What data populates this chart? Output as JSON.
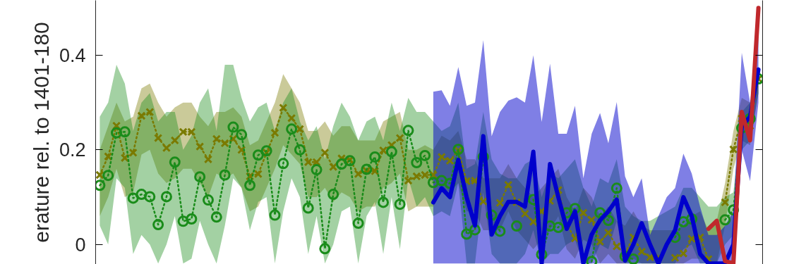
{
  "chart_data": {
    "type": "line",
    "ylabel": "erature rel. to 1401-180",
    "categories": [
      null,
      null,
      null,
      null,
      null,
      null,
      null,
      null,
      null,
      null,
      null,
      null,
      null,
      null,
      null,
      null,
      null,
      null,
      null,
      null,
      null,
      null,
      null,
      null,
      null,
      null,
      null,
      null,
      null,
      null,
      null,
      null,
      null,
      null,
      null,
      null,
      null,
      null,
      null,
      null,
      null,
      null,
      null,
      null,
      null,
      null,
      null,
      null,
      null,
      null,
      null,
      null,
      null,
      null,
      null,
      null,
      null,
      null,
      null,
      null,
      null,
      null,
      null,
      null,
      null,
      null,
      null,
      null,
      null,
      null,
      null,
      null,
      null,
      null,
      null,
      null,
      null,
      null,
      null,
      null
    ],
    "ylim": [
      -0.042,
      0.516
    ],
    "yticks": [
      0,
      0.2,
      0.4
    ],
    "tick_labels": "y",
    "grid": false,
    "series": [
      {
        "color": "#7a7a00",
        "marker": "cross",
        "line_style": "dotted",
        "values": [
          0.147,
          0.186,
          0.251,
          0.183,
          0.194,
          0.272,
          0.28,
          0.225,
          0.204,
          0.22,
          0.238,
          0.238,
          0.207,
          0.18,
          0.223,
          0.214,
          0.223,
          0.2,
          0.144,
          0.149,
          0.194,
          0.236,
          0.289,
          0.267,
          0.244,
          0.174,
          0.174,
          0.194,
          0.164,
          0.182,
          0.179,
          0.149,
          0.156,
          0.155,
          0.199,
          0.21,
          0.225,
          0.135,
          0.144,
          0.147,
          0.147,
          0.185,
          0.177,
          0.199,
          0.134,
          0.135,
          0.091,
          null,
          0.088,
          0.126,
          0.089,
          0.065,
          0.048,
          0.07,
          0.092,
          0.115,
          0.042,
          0.013,
          0.067,
          0.052,
          0.006,
          0.025,
          -0.004,
          -0.019,
          0.015,
          -0.015,
          -0.027,
          -0.027,
          null,
          -0.028,
          -0.019,
          0.012,
          0.015,
          -0.031,
          null,
          0.089,
          0.201,
          0.266,
          0.251,
          0.35
        ],
        "upper": [
          0.2,
          0.25,
          0.3,
          0.26,
          0.27,
          0.33,
          0.34,
          0.3,
          0.27,
          0.29,
          0.3,
          0.3,
          0.27,
          0.25,
          0.28,
          0.28,
          0.29,
          0.27,
          0.21,
          0.22,
          0.26,
          0.3,
          0.36,
          0.33,
          0.3,
          0.24,
          0.24,
          0.26,
          0.23,
          0.25,
          0.25,
          0.22,
          0.22,
          0.22,
          0.26,
          0.27,
          0.28,
          0.2,
          0.2,
          0.21,
          0.2,
          0.23,
          0.22,
          0.24,
          0.18,
          0.18,
          0.14,
          0.14,
          0.14,
          0.17,
          0.14,
          0.12,
          0.1,
          0.12,
          0.14,
          0.16,
          0.1,
          0.07,
          0.12,
          0.1,
          0.06,
          0.08,
          0.05,
          0.04,
          0.07,
          0.04,
          0.03,
          0.03,
          0.03,
          0.03,
          0.04,
          0.06,
          0.07,
          0.03,
          0.05,
          0.13,
          0.24,
          0.31,
          0.3,
          0.37
        ],
        "lower": [
          0.06,
          0.1,
          0.16,
          0.1,
          0.11,
          0.19,
          0.2,
          0.15,
          0.13,
          0.14,
          0.16,
          0.16,
          0.13,
          0.1,
          0.15,
          0.14,
          0.15,
          0.12,
          0.07,
          0.08,
          0.12,
          0.16,
          0.21,
          0.19,
          0.17,
          0.1,
          0.1,
          0.12,
          0.09,
          0.11,
          0.1,
          0.07,
          0.08,
          0.08,
          0.12,
          0.13,
          0.15,
          0.07,
          0.08,
          0.08,
          0.08,
          0.12,
          0.11,
          0.13,
          0.07,
          0.07,
          0.03,
          0.03,
          0.03,
          0.07,
          0.03,
          0.01,
          -0.01,
          0.01,
          0.03,
          0.06,
          -0.01,
          -0.03,
          0.01,
          0.0,
          -0.04,
          -0.02,
          -0.04,
          -0.04,
          -0.03,
          -0.04,
          -0.04,
          -0.04,
          -0.04,
          -0.04,
          -0.04,
          -0.03,
          -0.03,
          -0.04,
          -0.04,
          0.04,
          0.16,
          0.22,
          0.21,
          0.32
        ]
      },
      {
        "color": "#1a8c1a",
        "marker": "circle",
        "line_style": "dotted",
        "values": [
          0.125,
          0.146,
          0.236,
          0.238,
          0.098,
          0.106,
          0.101,
          0.042,
          0.101,
          0.174,
          0.049,
          0.054,
          0.143,
          0.094,
          0.058,
          0.147,
          0.248,
          0.232,
          0.125,
          0.189,
          0.198,
          0.062,
          0.171,
          0.244,
          0.2,
          0.077,
          0.158,
          -0.009,
          0.106,
          0.17,
          0.177,
          0.045,
          0.159,
          0.185,
          0.089,
          0.196,
          0.085,
          0.241,
          0.173,
          0.188,
          0.131,
          0.135,
          0.129,
          0.201,
          0.022,
          0.031,
          0.185,
          0.062,
          0.028,
          null,
          0.039,
          null,
          0.095,
          -0.021,
          0.039,
          0.036,
          0.067,
          0.076,
          null,
          -0.036,
          0.067,
          0.051,
          0.119,
          -0.025,
          -0.031,
          null,
          null,
          null,
          null,
          0.015,
          0.048,
          0.054,
          null,
          null,
          null,
          0.052,
          0.073,
          0.246,
          0.266,
          0.35
        ],
        "upper": [
          0.27,
          0.3,
          0.38,
          0.34,
          0.24,
          0.3,
          0.32,
          0.26,
          0.28,
          0.28,
          0.2,
          0.23,
          0.3,
          0.33,
          0.24,
          0.38,
          0.38,
          0.31,
          0.26,
          0.29,
          0.3,
          0.24,
          0.3,
          0.33,
          0.26,
          0.22,
          0.25,
          0.18,
          0.25,
          0.3,
          0.27,
          0.22,
          0.26,
          0.27,
          0.22,
          0.3,
          0.24,
          0.31,
          0.28,
          0.28,
          0.26,
          0.24,
          0.25,
          0.3,
          0.16,
          0.17,
          0.28,
          0.18,
          0.15,
          0.14,
          0.14,
          0.17,
          0.18,
          0.1,
          0.15,
          0.14,
          0.16,
          0.18,
          0.12,
          0.08,
          0.14,
          0.13,
          0.18,
          0.08,
          0.06,
          0.05,
          0.05,
          0.06,
          0.07,
          0.08,
          0.12,
          0.12,
          0.1,
          0.08,
          0.08,
          0.1,
          0.11,
          0.28,
          0.3,
          0.37
        ],
        "lower": [
          0.04,
          0.0,
          0.14,
          0.12,
          -0.02,
          0.02,
          0.0,
          -0.04,
          0.0,
          0.06,
          -0.04,
          -0.03,
          0.05,
          0.0,
          -0.04,
          0.04,
          0.14,
          0.12,
          0.03,
          0.09,
          0.1,
          -0.04,
          0.07,
          0.14,
          0.1,
          -0.02,
          0.06,
          -0.04,
          0.0,
          0.07,
          0.08,
          -0.04,
          0.06,
          0.09,
          -0.02,
          0.1,
          -0.01,
          0.14,
          0.08,
          0.1,
          0.06,
          0.07,
          0.06,
          0.13,
          -0.04,
          -0.04,
          0.11,
          -0.02,
          -0.04,
          -0.04,
          -0.04,
          -0.02,
          0.03,
          -0.04,
          -0.02,
          -0.02,
          0.0,
          0.01,
          -0.04,
          -0.04,
          0.0,
          -0.01,
          0.05,
          -0.04,
          -0.04,
          -0.04,
          -0.04,
          -0.04,
          -0.04,
          -0.04,
          -0.01,
          0.0,
          -0.04,
          -0.04,
          -0.04,
          0.0,
          0.02,
          0.2,
          0.22,
          0.32
        ]
      },
      {
        "color": "#0000cc",
        "marker": "none",
        "line_style": "solid",
        "values": [
          null,
          null,
          null,
          null,
          null,
          null,
          null,
          null,
          null,
          null,
          null,
          null,
          null,
          null,
          null,
          null,
          null,
          null,
          null,
          null,
          null,
          null,
          null,
          null,
          null,
          null,
          null,
          null,
          null,
          null,
          null,
          null,
          null,
          null,
          null,
          null,
          null,
          null,
          null,
          null,
          0.089,
          0.119,
          0.1,
          0.179,
          0.1,
          0.04,
          0.229,
          0.021,
          0.06,
          0.09,
          0.09,
          0.08,
          0.196,
          -0.04,
          0.17,
          0.1,
          0.033,
          0.07,
          -0.04,
          0.021,
          0.051,
          0.07,
          0.095,
          -0.034,
          0.0,
          0.045,
          0.0,
          -0.04,
          0.0,
          0.03,
          0.1,
          0.06,
          -0.02,
          -0.04,
          -0.04,
          -0.04,
          0.0,
          0.25,
          0.27,
          0.37
        ],
        "upper": [
          null,
          null,
          null,
          null,
          null,
          null,
          null,
          null,
          null,
          null,
          null,
          null,
          null,
          null,
          null,
          null,
          null,
          null,
          null,
          null,
          null,
          null,
          null,
          null,
          null,
          null,
          null,
          null,
          null,
          null,
          null,
          null,
          null,
          null,
          null,
          null,
          null,
          null,
          null,
          null,
          0.323,
          0.326,
          0.293,
          0.375,
          0.293,
          0.3,
          0.432,
          0.229,
          0.28,
          0.304,
          0.311,
          0.3,
          0.4,
          0.259,
          0.382,
          0.234,
          0.234,
          0.293,
          0.14,
          0.234,
          0.278,
          0.214,
          0.301,
          0.144,
          0.1,
          0.14,
          0.02,
          0.06,
          0.1,
          0.119,
          0.192,
          0.15,
          0.08,
          0.02,
          0.02,
          0.04,
          0.07,
          0.405,
          0.3,
          0.45
        ],
        "lower": [
          null,
          null,
          null,
          null,
          null,
          null,
          null,
          null,
          null,
          null,
          null,
          null,
          null,
          null,
          null,
          null,
          null,
          null,
          null,
          null,
          null,
          null,
          null,
          null,
          null,
          null,
          null,
          null,
          null,
          null,
          null,
          null,
          null,
          null,
          null,
          null,
          null,
          null,
          null,
          null,
          -0.04,
          -0.04,
          -0.04,
          -0.04,
          -0.04,
          -0.04,
          -0.04,
          -0.04,
          -0.04,
          -0.04,
          -0.04,
          -0.04,
          -0.04,
          -0.04,
          -0.04,
          -0.04,
          -0.04,
          -0.04,
          -0.04,
          -0.04,
          -0.04,
          -0.04,
          -0.04,
          -0.04,
          -0.04,
          -0.04,
          -0.04,
          -0.04,
          -0.04,
          -0.04,
          -0.04,
          -0.04,
          -0.04,
          -0.04,
          -0.04,
          -0.04,
          -0.04,
          0.2,
          0.134,
          0.3
        ]
      },
      {
        "color": "#c0282c",
        "marker": "none",
        "line_style": "solid",
        "values": [
          null,
          null,
          null,
          null,
          null,
          null,
          null,
          null,
          null,
          null,
          null,
          null,
          null,
          null,
          null,
          null,
          null,
          null,
          null,
          null,
          null,
          null,
          null,
          null,
          null,
          null,
          null,
          null,
          null,
          null,
          null,
          null,
          null,
          null,
          null,
          null,
          null,
          null,
          null,
          null,
          null,
          null,
          null,
          null,
          null,
          null,
          null,
          null,
          null,
          null,
          null,
          null,
          null,
          null,
          null,
          null,
          null,
          null,
          null,
          null,
          null,
          null,
          null,
          null,
          null,
          null,
          null,
          null,
          null,
          null,
          null,
          null,
          null,
          0.033,
          0.05,
          -0.035,
          -0.04,
          0.28,
          0.22,
          0.5
        ]
      }
    ]
  }
}
